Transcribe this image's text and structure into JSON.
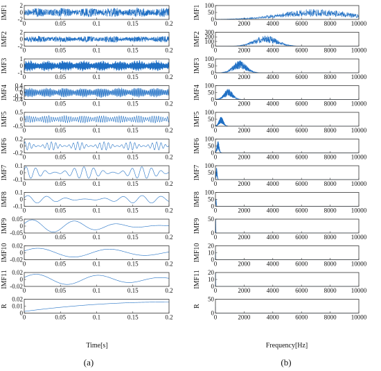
{
  "figure": {
    "left_caption": "(a)",
    "right_caption": "(b)",
    "left_xlabel": "Time[s]",
    "right_xlabel": "Frequency[Hz]",
    "series_color": "#1f6fc4"
  },
  "chart_data": [
    {
      "type": "line",
      "panel": "a",
      "xlabel": "Time[s]",
      "xlim": [
        0,
        0.2
      ],
      "xticks": [
        0,
        0.05,
        0.1,
        0.15,
        0.2
      ],
      "xtick_labels": [
        "0",
        "0.05",
        "0.1",
        "0.15",
        "0.2"
      ],
      "subplots": [
        {
          "name": "IMF1",
          "ylim": [
            -2,
            2
          ],
          "yticks": [
            -2,
            0,
            2
          ],
          "ytick_labels": [
            "-2",
            "0",
            "2"
          ],
          "kind": "noise",
          "amplitude": 1.3,
          "freq": 0
        },
        {
          "name": "IMF2",
          "ylim": [
            -2,
            2
          ],
          "yticks": [
            -2,
            0,
            2
          ],
          "ytick_labels": [
            "-2",
            "0",
            "2"
          ],
          "kind": "noise",
          "amplitude": 0.9,
          "freq": 0
        },
        {
          "name": "IMF3",
          "ylim": [
            -1,
            1
          ],
          "yticks": [
            -1,
            0,
            1
          ],
          "ytick_labels": [
            "-1",
            "0",
            "1"
          ],
          "kind": "burst",
          "amplitude": 0.85,
          "freq": 1600
        },
        {
          "name": "IMF4",
          "ylim": [
            -0.4,
            0.4
          ],
          "yticks": [
            -0.4,
            -0.2,
            0,
            0.2,
            0.4
          ],
          "ytick_labels": [
            "-0.4",
            "-0.2",
            "0",
            "0.2",
            "0.4"
          ],
          "kind": "burst",
          "amplitude": 0.3,
          "freq": 700
        },
        {
          "name": "IMF5",
          "ylim": [
            -0.5,
            0.5
          ],
          "yticks": [
            -0.5,
            0,
            0.5
          ],
          "ytick_labels": [
            "-0.5",
            "0",
            "0.5"
          ],
          "kind": "burst",
          "amplitude": 0.28,
          "freq": 330
        },
        {
          "name": "IMF6",
          "ylim": [
            -0.2,
            0.2
          ],
          "yticks": [
            -0.2,
            0,
            0.2
          ],
          "ytick_labels": [
            "-0.2",
            "0",
            "0.2"
          ],
          "kind": "wave",
          "amplitude": 0.12,
          "freq": 165
        },
        {
          "name": "IMF7",
          "ylim": [
            -0.1,
            0.1
          ],
          "yticks": [
            -0.1,
            0,
            0.1
          ],
          "ytick_labels": [
            "-0.1",
            "0",
            "0.1"
          ],
          "kind": "wave",
          "amplitude": 0.085,
          "freq": 75
        },
        {
          "name": "IMF8",
          "ylim": [
            -0.1,
            0.1
          ],
          "yticks": [
            -0.1,
            0,
            0.1
          ],
          "ytick_labels": [
            "-0.1",
            "0",
            "0.1"
          ],
          "kind": "wave",
          "amplitude": 0.055,
          "freq": 38
        },
        {
          "name": "IMF9",
          "ylim": [
            -0.05,
            0.05
          ],
          "yticks": [
            -0.05,
            0,
            0.05
          ],
          "ytick_labels": [
            "-0.05",
            "0",
            "0.05"
          ],
          "kind": "wave",
          "amplitude": 0.045,
          "freq": 17
        },
        {
          "name": "IMF10",
          "ylim": [
            -0.02,
            0.02
          ],
          "yticks": [
            -0.02,
            0,
            0.02
          ],
          "ytick_labels": [
            "-0.02",
            "0",
            "0.02"
          ],
          "kind": "wave",
          "amplitude": 0.013,
          "freq": 10
        },
        {
          "name": "IMF11",
          "ylim": [
            -0.02,
            0.02
          ],
          "yticks": [
            -0.02,
            0,
            0.02
          ],
          "ytick_labels": [
            "-0.02",
            "0",
            "0.02"
          ],
          "kind": "wave",
          "amplitude": 0.015,
          "freq": 11.5
        },
        {
          "name": "R",
          "ylim": [
            0,
            0.02
          ],
          "yticks": [
            0,
            0.01,
            0.02
          ],
          "ytick_labels": [
            "0",
            "0.01",
            "0.02"
          ],
          "kind": "trend",
          "amplitude": 0.016,
          "freq": 0
        }
      ]
    },
    {
      "type": "line",
      "panel": "b",
      "xlabel": "Frequency[Hz]",
      "xlim": [
        0,
        10000
      ],
      "xticks": [
        0,
        2000,
        4000,
        6000,
        8000,
        10000
      ],
      "xtick_labels": [
        "0",
        "2000",
        "4000",
        "6000",
        "8000",
        "10000"
      ],
      "subplots": [
        {
          "name": "IMF1",
          "ylim": [
            0,
            100
          ],
          "yticks": [
            0,
            50,
            100
          ],
          "ytick_labels": [
            "0",
            "50",
            "100"
          ],
          "center_hz": 7000,
          "spread_hz": 3500,
          "peak": 60
        },
        {
          "name": "IMF2",
          "ylim": [
            0,
            300
          ],
          "yticks": [
            0,
            100,
            200,
            300
          ],
          "ytick_labels": [
            "0",
            "100",
            "200",
            "300"
          ],
          "center_hz": 3500,
          "spread_hz": 1100,
          "peak": 190
        },
        {
          "name": "IMF3",
          "ylim": [
            0,
            100
          ],
          "yticks": [
            0,
            50,
            100
          ],
          "ytick_labels": [
            "0",
            "50",
            "100"
          ],
          "center_hz": 1700,
          "spread_hz": 650,
          "peak": 72
        },
        {
          "name": "IMF4",
          "ylim": [
            0,
            100
          ],
          "yticks": [
            0,
            50,
            100
          ],
          "ytick_labels": [
            "0",
            "50",
            "100"
          ],
          "center_hz": 900,
          "spread_hz": 420,
          "peak": 62
        },
        {
          "name": "IMF5",
          "ylim": [
            0,
            100
          ],
          "yticks": [
            0,
            50,
            100
          ],
          "ytick_labels": [
            "0",
            "50",
            "100"
          ],
          "center_hz": 400,
          "spread_hz": 220,
          "peak": 55
        },
        {
          "name": "IMF6",
          "ylim": [
            0,
            100
          ],
          "yticks": [
            0,
            50,
            100
          ],
          "ytick_labels": [
            "0",
            "50",
            "100"
          ],
          "center_hz": 180,
          "spread_hz": 110,
          "peak": 68
        },
        {
          "name": "IMF7",
          "ylim": [
            0,
            100
          ],
          "yticks": [
            0,
            50,
            100
          ],
          "ytick_labels": [
            "0",
            "50",
            "100"
          ],
          "center_hz": 80,
          "spread_hz": 60,
          "peak": 70
        },
        {
          "name": "IMF8",
          "ylim": [
            0,
            100
          ],
          "yticks": [
            0,
            50,
            100
          ],
          "ytick_labels": [
            "0",
            "50",
            "100"
          ],
          "center_hz": 40,
          "spread_hz": 30,
          "peak": 45
        },
        {
          "name": "IMF9",
          "ylim": [
            0,
            50
          ],
          "yticks": [
            0,
            50
          ],
          "ytick_labels": [
            "0",
            "50"
          ],
          "center_hz": 18,
          "spread_hz": 14,
          "peak": 45
        },
        {
          "name": "IMF10",
          "ylim": [
            0,
            20
          ],
          "yticks": [
            0,
            10,
            20
          ],
          "ytick_labels": [
            "0",
            "10",
            "20"
          ],
          "center_hz": 10,
          "spread_hz": 8,
          "peak": 12
        },
        {
          "name": "IMF11",
          "ylim": [
            0,
            20
          ],
          "yticks": [
            0,
            10,
            20
          ],
          "ytick_labels": [
            "0",
            "10",
            "20"
          ],
          "center_hz": 10,
          "spread_hz": 8,
          "peak": 20
        },
        {
          "name": "R",
          "ylim": [
            0,
            50
          ],
          "yticks": [
            0,
            50
          ],
          "ytick_labels": [
            "0",
            "50"
          ],
          "center_hz": 0,
          "spread_hz": 5,
          "peak": 20
        }
      ]
    }
  ]
}
